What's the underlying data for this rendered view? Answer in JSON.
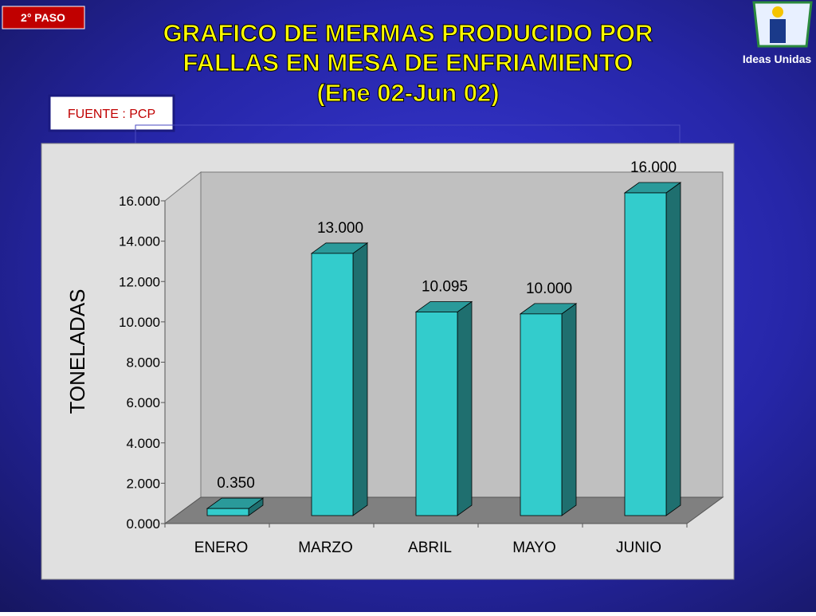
{
  "badge": "2° PASO",
  "logo_text": "Ideas Unidas",
  "source": "FUENTE : PCP",
  "chart_data": {
    "type": "bar3d",
    "title": [
      "GRAFICO DE MERMAS PRODUCIDO POR",
      "FALLAS EN MESA DE ENFRIAMIENTO",
      "(Ene 02-Jun 02)"
    ],
    "y_label": "TONELADAS",
    "categories": [
      "ENERO",
      "MARZO",
      "ABRIL",
      "MAYO",
      "JUNIO"
    ],
    "values": [
      0.35,
      13,
      10.095,
      10,
      16
    ],
    "value_labels": [
      "0.350",
      "13.000",
      "10.095",
      "10.000",
      "16.000"
    ],
    "color": "#33cccc",
    "ylim": [
      0,
      16
    ],
    "yticks": [
      {
        "value": 0,
        "label": "0.000"
      },
      {
        "value": 2,
        "label": "2.000"
      },
      {
        "value": 4,
        "label": "4.000"
      },
      {
        "value": 6,
        "label": "6.000"
      },
      {
        "value": 8,
        "label": "8.000"
      },
      {
        "value": 10,
        "label": "10.000"
      },
      {
        "value": 12,
        "label": "12.000"
      },
      {
        "value": 14,
        "label": "14.000"
      },
      {
        "value": 16,
        "label": "16.000"
      }
    ]
  }
}
